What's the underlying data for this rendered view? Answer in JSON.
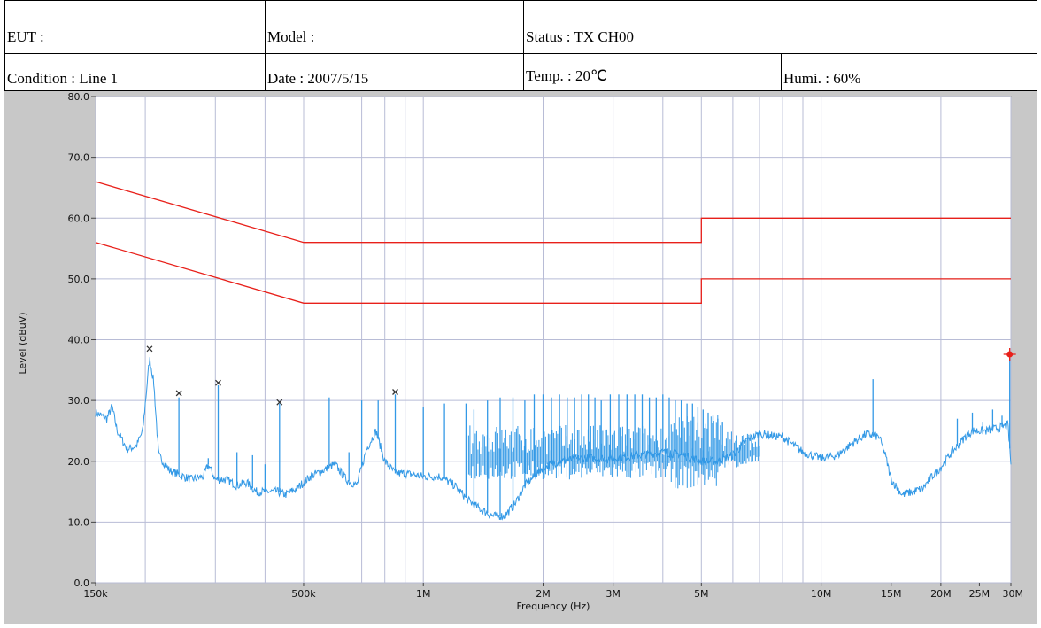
{
  "header": {
    "eut": "EUT :",
    "model": "Model :",
    "status": "Status : TX CH00",
    "condition": "Condition : Line 1",
    "date": "Date : 2007/5/15",
    "temp": "Temp. : 20℃",
    "humi": "Humi. : 60%"
  },
  "chart_data": {
    "type": "line",
    "xlabel": "Frequency (Hz)",
    "ylabel": "Level (dBuV)",
    "xscale": "log",
    "xlim": [
      150000,
      30000000
    ],
    "ylim": [
      0,
      80
    ],
    "grid": true,
    "yticks": [
      {
        "value": 0,
        "label": "0.0"
      },
      {
        "value": 10,
        "label": "10.0"
      },
      {
        "value": 20,
        "label": "20.0"
      },
      {
        "value": 30,
        "label": "30.0"
      },
      {
        "value": 40,
        "label": "40.0"
      },
      {
        "value": 50,
        "label": "50.0"
      },
      {
        "value": 60,
        "label": "60.0"
      },
      {
        "value": 70,
        "label": "70.0"
      },
      {
        "value": 80,
        "label": "80.0"
      }
    ],
    "xticks": [
      {
        "value": 150000,
        "label": "150k"
      },
      {
        "value": 500000,
        "label": "500k"
      },
      {
        "value": 1000000,
        "label": "1M"
      },
      {
        "value": 2000000,
        "label": "2M"
      },
      {
        "value": 3000000,
        "label": "3M"
      },
      {
        "value": 5000000,
        "label": "5M"
      },
      {
        "value": 10000000,
        "label": "10M"
      },
      {
        "value": 15000000,
        "label": "15M"
      },
      {
        "value": 20000000,
        "label": "20M"
      },
      {
        "value": 25000000,
        "label": "25M"
      },
      {
        "value": 30000000,
        "label": "30M"
      }
    ],
    "grid_x": [
      150000,
      200000,
      300000,
      400000,
      500000,
      600000,
      700000,
      800000,
      900000,
      1000000,
      2000000,
      3000000,
      4000000,
      5000000,
      6000000,
      7000000,
      8000000,
      9000000,
      10000000,
      20000000,
      30000000
    ],
    "colors": {
      "limit": "#e8201a",
      "trace": "#3399e6",
      "marker": "#333333",
      "highlight": "#e8201a",
      "bg": "#c8c8c8",
      "plot_bg": "#ffffff",
      "grid": "#b8bcd6"
    },
    "limit_lines": [
      {
        "points": [
          [
            150000,
            66
          ],
          [
            500000,
            56
          ],
          [
            5000000,
            56
          ],
          [
            5000000,
            60
          ],
          [
            30000000,
            60
          ]
        ]
      },
      {
        "points": [
          [
            150000,
            56
          ],
          [
            500000,
            46
          ],
          [
            5000000,
            46
          ],
          [
            5000000,
            50
          ],
          [
            30000000,
            50
          ]
        ]
      }
    ],
    "trace_base": [
      [
        150000,
        28
      ],
      [
        160000,
        27
      ],
      [
        165000,
        29
      ],
      [
        170000,
        25
      ],
      [
        180000,
        22
      ],
      [
        190000,
        22.5
      ],
      [
        197000,
        25
      ],
      [
        205000,
        37
      ],
      [
        210000,
        33
      ],
      [
        216000,
        21
      ],
      [
        230000,
        18.5
      ],
      [
        260000,
        17
      ],
      [
        280000,
        17.5
      ],
      [
        288000,
        19.5
      ],
      [
        300000,
        17
      ],
      [
        320000,
        17
      ],
      [
        340000,
        16
      ],
      [
        360000,
        16.5
      ],
      [
        380000,
        15
      ],
      [
        400000,
        15
      ],
      [
        430000,
        15
      ],
      [
        450000,
        14.5
      ],
      [
        480000,
        15.5
      ],
      [
        520000,
        17.5
      ],
      [
        560000,
        18.5
      ],
      [
        600000,
        19.5
      ],
      [
        640000,
        17
      ],
      [
        680000,
        16
      ],
      [
        720000,
        22
      ],
      [
        760000,
        25
      ],
      [
        800000,
        20
      ],
      [
        850000,
        18
      ],
      [
        900000,
        18
      ],
      [
        1000000,
        17.5
      ],
      [
        1100000,
        17.5
      ],
      [
        1200000,
        16
      ],
      [
        1300000,
        13.5
      ],
      [
        1400000,
        12
      ],
      [
        1500000,
        11
      ],
      [
        1600000,
        11
      ],
      [
        1700000,
        13
      ],
      [
        1800000,
        16
      ],
      [
        2000000,
        19
      ],
      [
        2200000,
        20
      ],
      [
        2500000,
        20.5
      ],
      [
        3000000,
        20.5
      ],
      [
        3500000,
        21
      ],
      [
        4000000,
        21.5
      ],
      [
        4500000,
        21
      ],
      [
        5000000,
        20
      ],
      [
        5500000,
        20
      ],
      [
        6000000,
        21
      ],
      [
        6500000,
        23.5
      ],
      [
        7000000,
        24.5
      ],
      [
        8000000,
        24
      ],
      [
        9000000,
        21.5
      ],
      [
        10000000,
        20.5
      ],
      [
        11000000,
        21
      ],
      [
        12000000,
        23
      ],
      [
        13000000,
        24.5
      ],
      [
        14000000,
        24
      ],
      [
        14500000,
        21
      ],
      [
        15000000,
        17
      ],
      [
        16000000,
        14.5
      ],
      [
        17000000,
        15
      ],
      [
        18000000,
        15.5
      ],
      [
        19000000,
        17.5
      ],
      [
        20000000,
        19
      ],
      [
        21000000,
        21
      ],
      [
        22000000,
        22.5
      ],
      [
        23000000,
        24
      ],
      [
        24000000,
        25
      ],
      [
        26000000,
        25
      ],
      [
        28000000,
        25.5
      ],
      [
        29500000,
        26
      ],
      [
        30000000,
        19.5
      ]
    ],
    "trace_peaks": [
      [
        243000,
        30.5
      ],
      [
        288000,
        20.5
      ],
      [
        305000,
        32.5
      ],
      [
        340000,
        21.5
      ],
      [
        372000,
        21
      ],
      [
        400000,
        19.5
      ],
      [
        435000,
        29.5
      ],
      [
        580000,
        30.5
      ],
      [
        650000,
        21.5
      ],
      [
        700000,
        30
      ],
      [
        770000,
        30
      ],
      [
        850000,
        31
      ],
      [
        1000000,
        29
      ],
      [
        1130000,
        29.5
      ],
      [
        1280000,
        29.5
      ],
      [
        1340000,
        28.5
      ],
      [
        1450000,
        30
      ],
      [
        1560000,
        30.5
      ],
      [
        1680000,
        30.5
      ],
      [
        1800000,
        30
      ],
      [
        1900000,
        31
      ],
      [
        2000000,
        31
      ],
      [
        2100000,
        30.5
      ],
      [
        2200000,
        31
      ],
      [
        2300000,
        30.5
      ],
      [
        2400000,
        30.5
      ],
      [
        2500000,
        31
      ],
      [
        2600000,
        31
      ],
      [
        2700000,
        30.5
      ],
      [
        2800000,
        30
      ],
      [
        2950000,
        31
      ],
      [
        3100000,
        31
      ],
      [
        3250000,
        31
      ],
      [
        3400000,
        31
      ],
      [
        3550000,
        31
      ],
      [
        3700000,
        30.5
      ],
      [
        3850000,
        30.5
      ],
      [
        4000000,
        31
      ],
      [
        4150000,
        30.5
      ],
      [
        4300000,
        30
      ],
      [
        4450000,
        30
      ],
      [
        4600000,
        29.5
      ],
      [
        4750000,
        29.5
      ],
      [
        4900000,
        29
      ],
      [
        5050000,
        28.5
      ],
      [
        5200000,
        28
      ],
      [
        5350000,
        27.5
      ],
      [
        5500000,
        27
      ],
      [
        5650000,
        26.5
      ],
      [
        13500000,
        33.5
      ],
      [
        22000000,
        27
      ],
      [
        24000000,
        28
      ],
      [
        25500000,
        26.5
      ],
      [
        27000000,
        28.5
      ],
      [
        28500000,
        27.5
      ],
      [
        29800000,
        37
      ]
    ],
    "dense_noise": [
      {
        "from": 1300000,
        "to": 4200000,
        "low": 17,
        "high": 26
      },
      {
        "from": 4200000,
        "to": 5600000,
        "low": 15.5,
        "high": 28
      },
      {
        "from": 5600000,
        "to": 7000000,
        "low": 19,
        "high": 25
      }
    ],
    "markers": [
      [
        205000,
        38.5
      ],
      [
        243000,
        31.2
      ],
      [
        305000,
        32.9
      ],
      [
        435000,
        29.7
      ],
      [
        850000,
        31.4
      ]
    ],
    "highlight_point": [
      29800000,
      37.6
    ]
  }
}
